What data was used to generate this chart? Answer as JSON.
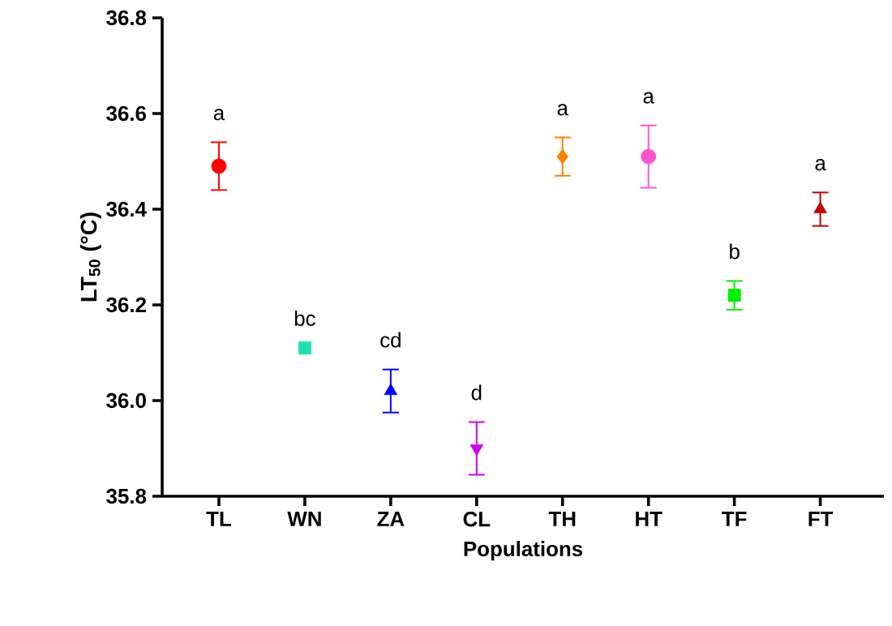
{
  "chart_data": {
    "type": "scatter",
    "xlabel": "Populations",
    "ylabel": "LT$_{50}$ (°C)",
    "categories": [
      "TL",
      "WN",
      "ZA",
      "CL",
      "TH",
      "HT",
      "TF",
      "FT"
    ],
    "ylim": [
      35.8,
      36.8
    ],
    "yticks": [
      35.8,
      {
        "value": 36.0,
        "label": "36.0"
      },
      36.2,
      36.4,
      36.6,
      36.8
    ],
    "series": [
      {
        "color": "#ff0000",
        "marker": "circle",
        "values": [
          36.49,
          null,
          null,
          null,
          null,
          null,
          null,
          null
        ],
        "errors": [
          0.05,
          null,
          null,
          null,
          null,
          null,
          null,
          null
        ]
      },
      {
        "color": "#20e0b0",
        "marker": "square",
        "values": [
          null,
          36.11,
          null,
          null,
          null,
          null,
          null,
          null
        ]
      },
      {
        "color": "#0000ff",
        "marker": "triangle",
        "values": [
          null,
          null,
          36.02,
          null,
          null,
          null,
          null,
          null
        ],
        "errors": [
          null,
          null,
          0.045,
          null,
          null,
          null,
          null,
          null
        ]
      },
      {
        "color": "#cc00ee",
        "marker": "triangle_down",
        "values": [
          null,
          null,
          null,
          35.9,
          null,
          null,
          null,
          null
        ],
        "errors": [
          null,
          null,
          null,
          0.055,
          null,
          null,
          null,
          null
        ]
      },
      {
        "color": "#ff8000",
        "marker": "diamond",
        "values": [
          null,
          null,
          null,
          null,
          36.51,
          null,
          null,
          null
        ],
        "errors": [
          null,
          null,
          null,
          null,
          0.04,
          null,
          null,
          null
        ]
      },
      {
        "color": "#ff55cc",
        "marker": "circle",
        "values": [
          null,
          null,
          null,
          null,
          null,
          36.51,
          null,
          null
        ],
        "errors": [
          null,
          null,
          null,
          null,
          null,
          0.065,
          null,
          null
        ]
      },
      {
        "color": "#00ee00",
        "marker": "square",
        "values": [
          null,
          null,
          null,
          null,
          null,
          null,
          36.22,
          null
        ],
        "errors": [
          null,
          null,
          null,
          null,
          null,
          null,
          0.03,
          null
        ]
      },
      {
        "color": "#c00000",
        "marker": "triangle",
        "values": [
          null,
          null,
          null,
          null,
          null,
          null,
          null,
          36.4
        ],
        "errors": [
          null,
          null,
          null,
          null,
          null,
          null,
          null,
          0.035
        ]
      }
    ],
    "annotations": [
      "a",
      "bc",
      "cd",
      "d",
      "a",
      "a",
      "b",
      "a"
    ]
  }
}
